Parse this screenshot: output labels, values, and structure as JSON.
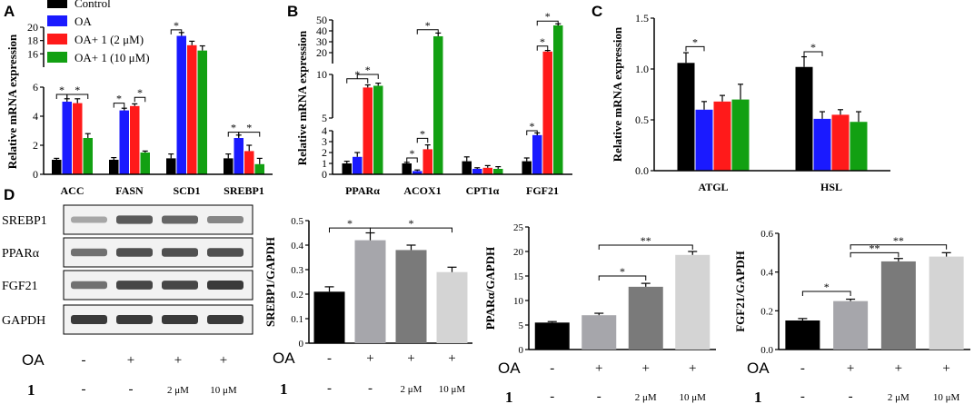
{
  "panel_labels": {
    "A": "A",
    "B": "B",
    "C": "C",
    "D": "D"
  },
  "chart_data": [
    {
      "panel": "A",
      "type": "bar",
      "ylabel": "Relative mRNA expression",
      "categories": [
        "ACC",
        "FASN",
        "SCD1",
        "SREBP1"
      ],
      "legend": [
        "Control",
        "OA",
        "OA+ 1 (2 μM)",
        "OA+ 1 (10 μM)"
      ],
      "colors": [
        "#000000",
        "#1a1aff",
        "#ff1a1a",
        "#12a012"
      ],
      "segments": [
        {
          "range": [
            0,
            6
          ],
          "ticks": [
            0,
            2,
            4,
            6
          ]
        },
        {
          "range": [
            14,
            20
          ],
          "ticks": [
            16,
            18,
            20
          ]
        }
      ],
      "series": [
        {
          "name": "Control",
          "values": [
            1.0,
            1.0,
            1.1,
            1.1
          ],
          "errors": [
            0.1,
            0.15,
            0.3,
            0.3
          ]
        },
        {
          "name": "OA",
          "values": [
            5.0,
            4.4,
            18.7,
            2.5
          ],
          "errors": [
            0.2,
            0.15,
            0.5,
            0.2
          ]
        },
        {
          "name": "OA+ 1 (2 μM)",
          "values": [
            4.9,
            4.7,
            17.3,
            1.6
          ],
          "errors": [
            0.3,
            0.15,
            0.6,
            0.4
          ]
        },
        {
          "name": "OA+ 1 (10 μM)",
          "values": [
            2.5,
            1.5,
            16.5,
            0.7
          ],
          "errors": [
            0.3,
            0.1,
            0.7,
            0.4
          ]
        }
      ],
      "brackets": [
        {
          "cat": 0,
          "from": 0,
          "to": 1,
          "y": 5.5,
          "label": "*"
        },
        {
          "cat": 0,
          "from": 1,
          "to": 3,
          "y": 5.5,
          "label": "*"
        },
        {
          "cat": 1,
          "from": 0,
          "to": 1,
          "y": 4.9,
          "label": "*"
        },
        {
          "cat": 1,
          "from": 2,
          "to": 3,
          "y": 5.3,
          "label": "*"
        },
        {
          "cat": 2,
          "from": 0,
          "to": 1,
          "y": 19.6,
          "label": "*"
        },
        {
          "cat": 3,
          "from": 0,
          "to": 1,
          "y": 2.9,
          "label": "*"
        },
        {
          "cat": 3,
          "from": 1,
          "to": 3,
          "y": 2.9,
          "label": "*"
        }
      ]
    },
    {
      "panel": "B",
      "type": "bar",
      "ylabel": "Relative mRNA expression",
      "categories": [
        "PPARα",
        "ACOX1",
        "CPT1α",
        "FGF21"
      ],
      "colors": [
        "#000000",
        "#1a1aff",
        "#ff1a1a",
        "#12a012"
      ],
      "segments": [
        {
          "range": [
            0,
            4
          ],
          "ticks": [
            0,
            1,
            2,
            3,
            4
          ]
        },
        {
          "range": [
            5,
            10
          ],
          "ticks": [
            5,
            10
          ]
        },
        {
          "range": [
            10,
            50
          ],
          "ticks": [
            20,
            30,
            40,
            50
          ]
        }
      ],
      "series": [
        {
          "name": "Control",
          "values": [
            1.0,
            1.0,
            1.2,
            1.2
          ],
          "errors": [
            0.2,
            0.1,
            0.4,
            0.3
          ]
        },
        {
          "name": "OA",
          "values": [
            1.6,
            0.3,
            0.5,
            3.6
          ],
          "errors": [
            0.4,
            0.1,
            0.1,
            0.2
          ]
        },
        {
          "name": "OA+ 1 (2 μM)",
          "values": [
            8.5,
            2.3,
            0.6,
            21
          ],
          "errors": [
            0.3,
            0.4,
            0.2,
            1.0
          ]
        },
        {
          "name": "OA+ 1 (10 μM)",
          "values": [
            8.7,
            35,
            0.5,
            45
          ],
          "errors": [
            0.3,
            3.0,
            0.2,
            1.5
          ]
        }
      ],
      "brackets": [
        {
          "cat": 0,
          "from": 0,
          "to": 2,
          "y": 9.5,
          "label": "*"
        },
        {
          "cat": 0,
          "from": 1,
          "to": 3,
          "y": 10,
          "label": "*"
        },
        {
          "cat": 1,
          "from": 0,
          "to": 1,
          "y": 1.5,
          "label": "*"
        },
        {
          "cat": 1,
          "from": 1,
          "to": 2,
          "y": 3.3,
          "label": "*"
        },
        {
          "cat": 1,
          "from": 1,
          "to": 3,
          "y": 41,
          "label": "*"
        },
        {
          "cat": 3,
          "from": 0,
          "to": 1,
          "y": 4.0,
          "label": "*"
        },
        {
          "cat": 3,
          "from": 1,
          "to": 2,
          "y": 26,
          "label": "*"
        },
        {
          "cat": 3,
          "from": 1,
          "to": 3,
          "y": 49,
          "label": "*"
        }
      ]
    },
    {
      "panel": "C",
      "type": "bar",
      "ylabel": "Relative mRNA expression",
      "categories": [
        "ATGL",
        "HSL"
      ],
      "colors": [
        "#000000",
        "#1a1aff",
        "#ff1a1a",
        "#12a012"
      ],
      "ylim": [
        0,
        1.5
      ],
      "yticks": [
        "0.0",
        "0.5",
        "1.0",
        "1.5"
      ],
      "series": [
        {
          "name": "Control",
          "values": [
            1.06,
            1.02
          ],
          "errors": [
            0.1,
            0.1
          ]
        },
        {
          "name": "OA",
          "values": [
            0.6,
            0.51
          ],
          "errors": [
            0.08,
            0.07
          ]
        },
        {
          "name": "OA+ 1 (2 μM)",
          "values": [
            0.68,
            0.55
          ],
          "errors": [
            0.06,
            0.05
          ]
        },
        {
          "name": "OA+ 1 (10 μM)",
          "values": [
            0.7,
            0.48
          ],
          "errors": [
            0.15,
            0.1
          ]
        }
      ],
      "brackets": [
        {
          "cat": 0,
          "from": 0,
          "to": 1,
          "y": 1.22,
          "label": "*"
        },
        {
          "cat": 1,
          "from": 0,
          "to": 1,
          "y": 1.17,
          "label": "*"
        }
      ]
    },
    {
      "panel": "D1",
      "type": "bar",
      "ylabel": "SREBP1/GAPDH",
      "categories": [
        "",
        "",
        "",
        ""
      ],
      "colors": [
        "#000000",
        "#a6a6ab",
        "#7a7a7a",
        "#d4d4d4"
      ],
      "ylim": [
        0,
        0.5
      ],
      "yticks": [
        "0",
        "0.1",
        "0.2",
        "0.3",
        "0.4",
        "0.5"
      ],
      "series": [
        {
          "name": "SREBP1/GAPDH",
          "values": [
            0.21,
            0.42,
            0.38,
            0.29
          ],
          "errors": [
            0.02,
            0.03,
            0.02,
            0.02
          ]
        }
      ],
      "brackets": [
        {
          "from": 0,
          "to": 1,
          "y": 0.47,
          "label": "*"
        },
        {
          "from": 1,
          "to": 3,
          "y": 0.47,
          "label": "*"
        }
      ],
      "treatment_rows": {
        "oa_label": "OA",
        "oa": [
          "-",
          "+",
          "+",
          "+"
        ],
        "drug_label": "1",
        "drug": [
          "-",
          "-",
          "2 μM",
          "10 μM"
        ]
      }
    },
    {
      "panel": "D2",
      "type": "bar",
      "ylabel": "PPARα/GAPDH",
      "categories": [
        "",
        "",
        "",
        ""
      ],
      "colors": [
        "#000000",
        "#a6a6ab",
        "#7a7a7a",
        "#d4d4d4"
      ],
      "ylim": [
        0,
        25
      ],
      "yticks": [
        "0",
        "5",
        "10",
        "15",
        "20",
        "25"
      ],
      "series": [
        {
          "name": "PPARα/GAPDH",
          "values": [
            5.5,
            7.0,
            12.8,
            19.3
          ],
          "errors": [
            0.2,
            0.4,
            0.7,
            0.7
          ]
        }
      ],
      "brackets": [
        {
          "from": 1,
          "to": 2,
          "y": 15.0,
          "label": "*"
        },
        {
          "from": 1,
          "to": 3,
          "y": 21.3,
          "label": "**"
        }
      ],
      "treatment_rows": {
        "oa_label": "OA",
        "oa": [
          "-",
          "+",
          "+",
          "+"
        ],
        "drug_label": "1",
        "drug": [
          "-",
          "-",
          "2 μM",
          "10 μM"
        ]
      }
    },
    {
      "panel": "D3",
      "type": "bar",
      "ylabel": "FGF21/GAPDH",
      "categories": [
        "",
        "",
        "",
        ""
      ],
      "colors": [
        "#000000",
        "#a6a6ab",
        "#7a7a7a",
        "#d4d4d4"
      ],
      "ylim": [
        0,
        0.6
      ],
      "yticks": [
        "0.0",
        "0.2",
        "0.4",
        "0.6"
      ],
      "series": [
        {
          "name": "FGF21/GAPDH",
          "values": [
            0.15,
            0.25,
            0.455,
            0.48
          ],
          "errors": [
            0.01,
            0.01,
            0.015,
            0.02
          ]
        }
      ],
      "brackets": [
        {
          "from": 0,
          "to": 1,
          "y": 0.3,
          "label": "*"
        },
        {
          "from": 1,
          "to": 2,
          "y": 0.5,
          "label": "**"
        },
        {
          "from": 1,
          "to": 3,
          "y": 0.54,
          "label": "**"
        }
      ],
      "treatment_rows": {
        "oa_label": "OA",
        "oa": [
          "-",
          "+",
          "+",
          "+"
        ],
        "drug_label": "1",
        "drug": [
          "-",
          "-",
          "2 μM",
          "10 μM"
        ]
      }
    }
  ],
  "blot": {
    "labels": [
      "SREBP1",
      "PPARα",
      "FGF21",
      "GAPDH"
    ],
    "intensities": [
      [
        0.35,
        0.7,
        0.65,
        0.5
      ],
      [
        0.6,
        0.75,
        0.75,
        0.75
      ],
      [
        0.6,
        0.8,
        0.8,
        0.85
      ],
      [
        0.85,
        0.85,
        0.85,
        0.85
      ]
    ],
    "oa_label": "OA",
    "oa": [
      "-",
      "+",
      "+",
      "+"
    ],
    "drug_label": "1",
    "drug": [
      "-",
      "-",
      "2 μM",
      "10 μM"
    ]
  }
}
